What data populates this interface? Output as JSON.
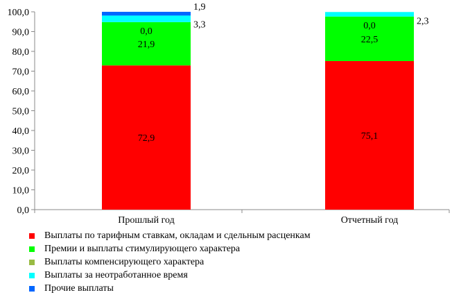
{
  "chart_data": {
    "type": "bar",
    "stacked": true,
    "categories": [
      "Прошлый год",
      "Отчетный год"
    ],
    "ylim": [
      0,
      100
    ],
    "yticks": [
      "0,0",
      "10,0",
      "20,0",
      "30,0",
      "40,0",
      "50,0",
      "60,0",
      "70,0",
      "80,0",
      "90,0",
      "100,0"
    ],
    "grid": false,
    "legend_position": "bottom",
    "series": [
      {
        "name": "Выплаты по тарифным ставкам, окладам и сдельным расценкам",
        "color": "#ff0000",
        "values": [
          72.9,
          75.1
        ],
        "labels": [
          "72,9",
          "75,1"
        ]
      },
      {
        "name": "Премии и выплаты стимулирующего характера",
        "color": "#00ff00",
        "values": [
          21.9,
          22.5
        ],
        "labels": [
          "21,9",
          "22,5"
        ]
      },
      {
        "name": "Выплаты компенсирующего характера",
        "color": "#99bb44",
        "values": [
          0.0,
          0.0
        ],
        "labels": [
          "0,0",
          "0,0"
        ]
      },
      {
        "name": "Выплаты за неотработанное время",
        "color": "#00ffff",
        "values": [
          3.3,
          2.3
        ],
        "labels": [
          "3,3",
          "2,3"
        ]
      },
      {
        "name": "Прочие выплаты",
        "color": "#0066ff",
        "values": [
          1.9,
          0.0
        ],
        "labels": [
          "1,9",
          ""
        ]
      }
    ]
  }
}
